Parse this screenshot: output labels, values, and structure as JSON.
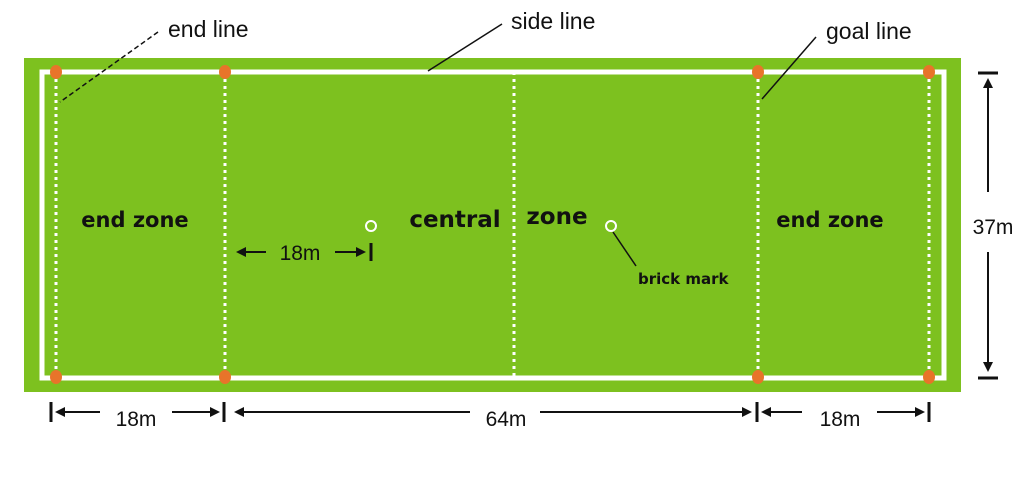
{
  "labels": {
    "end_line": "end line",
    "side_line": "side line",
    "goal_line": "goal line",
    "end_zone_left": "end zone",
    "central_zone_a": "central",
    "central_zone_b": "zone",
    "end_zone_right": "end zone",
    "brick_mark": "brick mark"
  },
  "dimensions": {
    "brick_distance": "18m",
    "end_zone_left_length": "18m",
    "central_zone_length": "64m",
    "end_zone_right_length": "18m",
    "field_width": "37m"
  },
  "colors": {
    "field": "#7dc11f",
    "field_border": "#6aab12",
    "lines": "#ffffff",
    "cones": "#e8742a",
    "text": "#111111"
  }
}
